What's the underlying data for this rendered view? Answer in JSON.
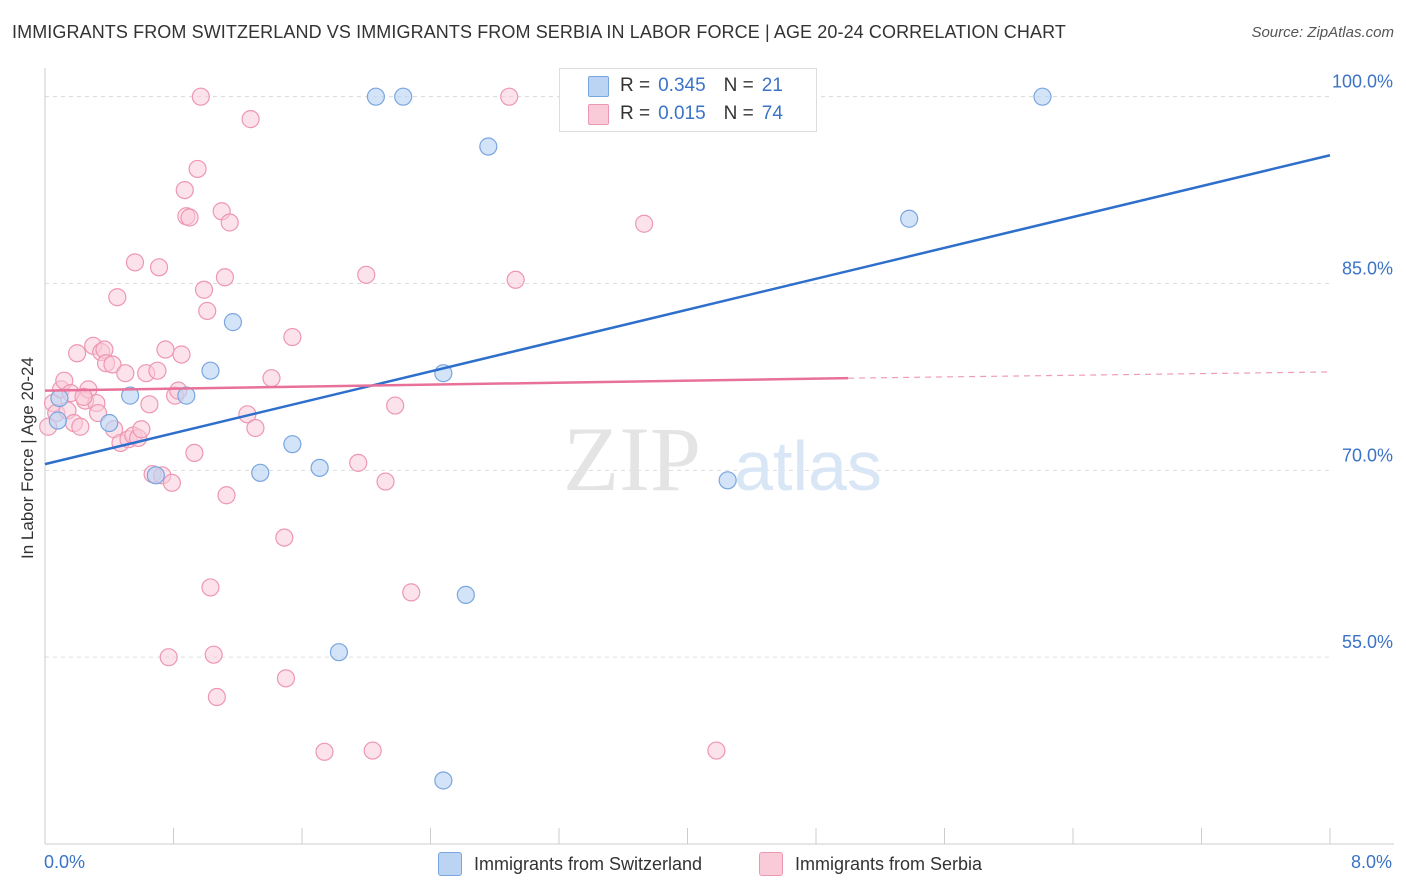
{
  "title": "IMMIGRANTS FROM SWITZERLAND VS IMMIGRANTS FROM SERBIA IN LABOR FORCE | AGE 20-24 CORRELATION CHART",
  "source": "Source: ZipAtlas.com",
  "legend_top": {
    "rows": [
      {
        "r_label": "R =",
        "r_value": "0.345",
        "n_label": "N =",
        "n_value": "21",
        "color": "#a8c8f0"
      },
      {
        "r_label": "R =",
        "r_value": "0.015",
        "n_label": "N =",
        "n_value": "74",
        "color": "#f6b8ca"
      }
    ]
  },
  "watermark": {
    "zip": "ZIP",
    "atlas": "atlas"
  },
  "colors": {
    "blue_fill": "#bcd4f4",
    "blue_stroke": "#7aa6df",
    "blue_line": "#2f6fcc",
    "pink_fill": "#f9cbd8",
    "pink_stroke": "#ee97b1",
    "pink_line": "#e8719a",
    "grid": "#dddddd",
    "tick_label": "#3b73c7"
  },
  "chart_data": {
    "type": "scatter",
    "title": "IMMIGRANTS FROM SWITZERLAND VS IMMIGRANTS FROM SERBIA IN LABOR FORCE | AGE 20-24 CORRELATION CHART",
    "xlabel": "",
    "ylabel": "In Labor Force | Age 20-24",
    "xlim": [
      0.0,
      8.0
    ],
    "ylim": [
      40.0,
      101.5
    ],
    "x_tick_labels": [
      "0.0%",
      "8.0%"
    ],
    "y_ticks": [
      55.0,
      70.0,
      85.0,
      100.0
    ],
    "y_tick_labels": [
      "55.0%",
      "70.0%",
      "85.0%",
      "100.0%"
    ],
    "grid": true,
    "legend_position": "top-center",
    "series": [
      {
        "name": "Immigrants from Switzerland",
        "color": "#a8c8f0",
        "points": [
          [
            0.08,
            74.0
          ],
          [
            0.4,
            73.8
          ],
          [
            0.53,
            76.0
          ],
          [
            0.69,
            69.6
          ],
          [
            0.88,
            76.0
          ],
          [
            1.17,
            81.9
          ],
          [
            1.03,
            78.0
          ],
          [
            1.34,
            69.8
          ],
          [
            1.54,
            72.1
          ],
          [
            1.71,
            70.2
          ],
          [
            1.83,
            55.4
          ],
          [
            2.06,
            100.0
          ],
          [
            2.23,
            100.0
          ],
          [
            2.48,
            45.1
          ],
          [
            2.48,
            77.8
          ],
          [
            2.62,
            60.0
          ],
          [
            2.76,
            96.0
          ],
          [
            4.25,
            69.2
          ],
          [
            5.38,
            90.2
          ],
          [
            6.21,
            100.0
          ],
          [
            0.09,
            75.8
          ]
        ]
      },
      {
        "name": "Immigrants from Serbia",
        "color": "#f6b8ca",
        "points": [
          [
            0.05,
            75.4
          ],
          [
            0.07,
            74.6
          ],
          [
            0.1,
            76.5
          ],
          [
            0.12,
            77.2
          ],
          [
            0.14,
            74.8
          ],
          [
            0.16,
            76.2
          ],
          [
            0.18,
            73.8
          ],
          [
            0.2,
            79.4
          ],
          [
            0.22,
            73.5
          ],
          [
            0.25,
            75.6
          ],
          [
            0.27,
            76.5
          ],
          [
            0.3,
            80.0
          ],
          [
            0.32,
            75.4
          ],
          [
            0.33,
            74.6
          ],
          [
            0.35,
            79.5
          ],
          [
            0.37,
            79.7
          ],
          [
            0.38,
            78.6
          ],
          [
            0.42,
            78.5
          ],
          [
            0.43,
            73.3
          ],
          [
            0.45,
            83.9
          ],
          [
            0.47,
            72.2
          ],
          [
            0.5,
            77.8
          ],
          [
            0.52,
            72.5
          ],
          [
            0.55,
            72.8
          ],
          [
            0.56,
            86.7
          ],
          [
            0.58,
            72.6
          ],
          [
            0.6,
            73.3
          ],
          [
            0.63,
            77.8
          ],
          [
            0.65,
            75.3
          ],
          [
            0.67,
            69.7
          ],
          [
            0.7,
            78.0
          ],
          [
            0.71,
            86.3
          ],
          [
            0.73,
            69.6
          ],
          [
            0.75,
            79.7
          ],
          [
            0.77,
            55.0
          ],
          [
            0.79,
            69.0
          ],
          [
            0.81,
            76.0
          ],
          [
            0.83,
            76.4
          ],
          [
            0.85,
            79.3
          ],
          [
            0.87,
            92.5
          ],
          [
            0.88,
            90.4
          ],
          [
            0.9,
            90.3
          ],
          [
            0.93,
            71.4
          ],
          [
            0.95,
            94.2
          ],
          [
            0.97,
            100.0
          ],
          [
            0.99,
            84.5
          ],
          [
            1.01,
            82.8
          ],
          [
            1.03,
            60.6
          ],
          [
            1.05,
            55.2
          ],
          [
            1.07,
            51.8
          ],
          [
            1.1,
            90.8
          ],
          [
            1.12,
            85.5
          ],
          [
            1.13,
            68.0
          ],
          [
            1.15,
            89.9
          ],
          [
            1.26,
            74.5
          ],
          [
            1.28,
            98.2
          ],
          [
            1.31,
            73.4
          ],
          [
            1.41,
            77.4
          ],
          [
            1.49,
            64.6
          ],
          [
            1.5,
            53.3
          ],
          [
            1.54,
            80.7
          ],
          [
            1.74,
            47.4
          ],
          [
            1.95,
            70.6
          ],
          [
            2.0,
            85.7
          ],
          [
            2.04,
            47.5
          ],
          [
            2.12,
            69.1
          ],
          [
            2.18,
            75.2
          ],
          [
            2.28,
            60.2
          ],
          [
            2.89,
            100.0
          ],
          [
            2.93,
            85.3
          ],
          [
            3.73,
            89.8
          ],
          [
            4.18,
            47.5
          ],
          [
            0.02,
            73.5
          ],
          [
            0.24,
            75.9
          ]
        ]
      }
    ],
    "trendlines": [
      {
        "series": "Immigrants from Switzerland",
        "x": [
          0.0,
          8.0
        ],
        "y": [
          70.5,
          95.3
        ],
        "style": "solid"
      },
      {
        "series": "Immigrants from Serbia",
        "x": [
          0.0,
          5.0
        ],
        "y": [
          76.4,
          77.4
        ],
        "style": "solid"
      },
      {
        "series": "Immigrants from Serbia",
        "x": [
          5.0,
          8.0
        ],
        "y": [
          77.4,
          77.9
        ],
        "style": "dashed"
      }
    ]
  }
}
